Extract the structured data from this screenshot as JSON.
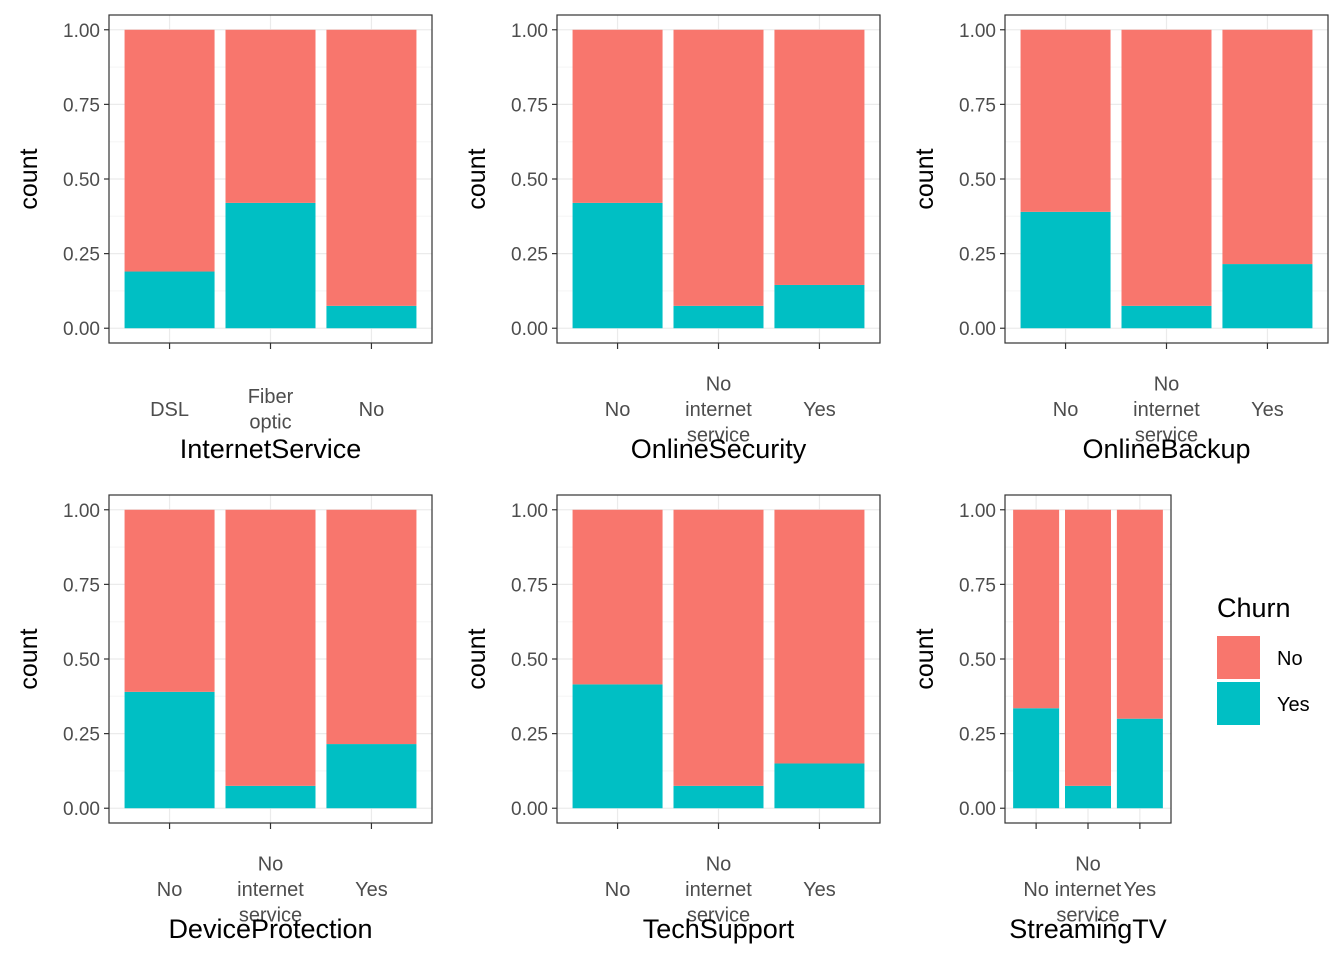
{
  "colors": {
    "No": "#F8766D",
    "Yes": "#00BFC4",
    "grid_major": "#EBEBEB",
    "grid_minor": "#F5F5F5",
    "border": "#333333",
    "tick_text": "#4D4D4D"
  },
  "legend": {
    "title": "Churn",
    "items": [
      {
        "label": "No",
        "color": "#F8766D"
      },
      {
        "label": "Yes",
        "color": "#00BFC4"
      }
    ]
  },
  "chart_data": [
    {
      "type": "bar",
      "stacked": "fill",
      "xlabel": "InternetService",
      "ylabel": "count",
      "categories": [
        [
          "DSL"
        ],
        [
          "Fiber",
          "optic"
        ],
        [
          "No"
        ]
      ],
      "series": [
        {
          "name": "No",
          "values": [
            0.81,
            0.58,
            0.925
          ]
        },
        {
          "name": "Yes",
          "values": [
            0.19,
            0.42,
            0.075
          ]
        }
      ],
      "ylim": [
        0,
        1
      ],
      "yticks": [
        "0.00",
        "0.25",
        "0.50",
        "0.75",
        "1.00"
      ],
      "grid": true
    },
    {
      "type": "bar",
      "stacked": "fill",
      "xlabel": "OnlineSecurity",
      "ylabel": "count",
      "categories": [
        [
          "No"
        ],
        [
          "No",
          "internet",
          "service"
        ],
        [
          "Yes"
        ]
      ],
      "series": [
        {
          "name": "No",
          "values": [
            0.58,
            0.925,
            0.855
          ]
        },
        {
          "name": "Yes",
          "values": [
            0.42,
            0.075,
            0.145
          ]
        }
      ],
      "ylim": [
        0,
        1
      ],
      "yticks": [
        "0.00",
        "0.25",
        "0.50",
        "0.75",
        "1.00"
      ],
      "grid": true
    },
    {
      "type": "bar",
      "stacked": "fill",
      "xlabel": "OnlineBackup",
      "ylabel": "count",
      "categories": [
        [
          "No"
        ],
        [
          "No",
          "internet",
          "service"
        ],
        [
          "Yes"
        ]
      ],
      "series": [
        {
          "name": "No",
          "values": [
            0.61,
            0.925,
            0.785
          ]
        },
        {
          "name": "Yes",
          "values": [
            0.39,
            0.075,
            0.215
          ]
        }
      ],
      "ylim": [
        0,
        1
      ],
      "yticks": [
        "0.00",
        "0.25",
        "0.50",
        "0.75",
        "1.00"
      ],
      "grid": true
    },
    {
      "type": "bar",
      "stacked": "fill",
      "xlabel": "DeviceProtection",
      "ylabel": "count",
      "categories": [
        [
          "No"
        ],
        [
          "No",
          "internet",
          "service"
        ],
        [
          "Yes"
        ]
      ],
      "series": [
        {
          "name": "No",
          "values": [
            0.61,
            0.925,
            0.785
          ]
        },
        {
          "name": "Yes",
          "values": [
            0.39,
            0.075,
            0.215
          ]
        }
      ],
      "ylim": [
        0,
        1
      ],
      "yticks": [
        "0.00",
        "0.25",
        "0.50",
        "0.75",
        "1.00"
      ],
      "grid": true
    },
    {
      "type": "bar",
      "stacked": "fill",
      "xlabel": "TechSupport",
      "ylabel": "count",
      "categories": [
        [
          "No"
        ],
        [
          "No",
          "internet",
          "service"
        ],
        [
          "Yes"
        ]
      ],
      "series": [
        {
          "name": "No",
          "values": [
            0.585,
            0.925,
            0.85
          ]
        },
        {
          "name": "Yes",
          "values": [
            0.415,
            0.075,
            0.15
          ]
        }
      ],
      "ylim": [
        0,
        1
      ],
      "yticks": [
        "0.00",
        "0.25",
        "0.50",
        "0.75",
        "1.00"
      ],
      "grid": true
    },
    {
      "type": "bar",
      "stacked": "fill",
      "xlabel": "StreamingTV",
      "ylabel": "count",
      "categories": [
        [
          "No"
        ],
        [
          "No",
          "internet",
          "service"
        ],
        [
          "Yes"
        ]
      ],
      "series": [
        {
          "name": "No",
          "values": [
            0.665,
            0.925,
            0.7
          ]
        },
        {
          "name": "Yes",
          "values": [
            0.335,
            0.075,
            0.3
          ]
        }
      ],
      "ylim": [
        0,
        1
      ],
      "yticks": [
        "0.00",
        "0.25",
        "0.50",
        "0.75",
        "1.00"
      ],
      "grid": true
    }
  ]
}
